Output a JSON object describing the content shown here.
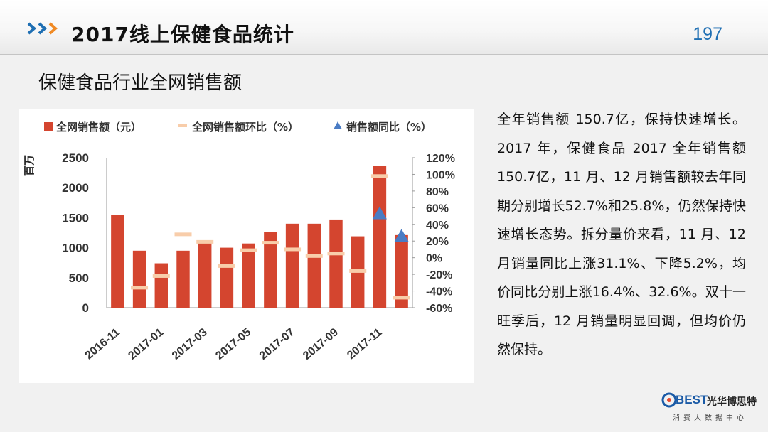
{
  "header": {
    "title": "2017线上保健食品统计",
    "page_number": "197"
  },
  "subtitle": "保健食品行业全网销售额",
  "body_text": "全年销售额 150.7亿，保持快速增长。2017 年，保健食品 2017 全年销售额 150.7亿，11 月、12 月销售额较去年同期分别增长52.7%和25.8%，仍然保持快速增长态势。拆分量价来看，11 月、12 月销量同比上涨31.1%、下降5.2%，均价同比分别上涨16.4%、32.6%。双十一旺季后，12 月销量明显回调，但均价仍然保持。",
  "logo": {
    "best": "BEST",
    "name": "光华博思特",
    "tagline": "消费大数据中心"
  },
  "colors": {
    "bar": "#d4452f",
    "mom_marker": "#f8cdaa",
    "yoy_marker": "#4a7cc4",
    "accent": "#1f6fb3"
  },
  "chart_data": {
    "type": "bar",
    "categories": [
      "2016-11",
      "2016-12",
      "2017-01",
      "2017-02",
      "2017-03",
      "2017-04",
      "2017-05",
      "2017-06",
      "2017-07",
      "2017-08",
      "2017-09",
      "2017-10",
      "2017-11",
      "2017-12"
    ],
    "tick_labels": [
      "2016-11",
      "2017-01",
      "2017-03",
      "2017-05",
      "2017-07",
      "2017-09",
      "2017-11"
    ],
    "ylabel": "百万",
    "ylim": [
      0,
      2500
    ],
    "yticks": [
      "2500",
      "2000",
      "1500",
      "1000",
      "500",
      "0"
    ],
    "y2lim": [
      -60,
      120
    ],
    "y2ticks": [
      "120%",
      "100%",
      "80%",
      "60%",
      "40%",
      "20%",
      "0%",
      "-20%",
      "-40%",
      "-60%"
    ],
    "legend_position": "top",
    "series": [
      {
        "name": "全网销售额（元）",
        "kind": "bar",
        "axis": "left",
        "values": [
          1550,
          950,
          740,
          950,
          1120,
          1000,
          1070,
          1260,
          1400,
          1400,
          1470,
          1190,
          2360,
          1210
        ]
      },
      {
        "name": "全网销售额环比（%）",
        "kind": "marker",
        "axis": "right",
        "values": [
          null,
          -36,
          -22,
          28,
          19,
          -10,
          9,
          18,
          10,
          2,
          5,
          -16,
          98,
          -48
        ]
      },
      {
        "name": "销售额同比（%）",
        "kind": "marker",
        "axis": "right",
        "values": [
          null,
          null,
          null,
          null,
          null,
          null,
          null,
          null,
          null,
          null,
          null,
          null,
          53,
          26
        ]
      }
    ]
  }
}
